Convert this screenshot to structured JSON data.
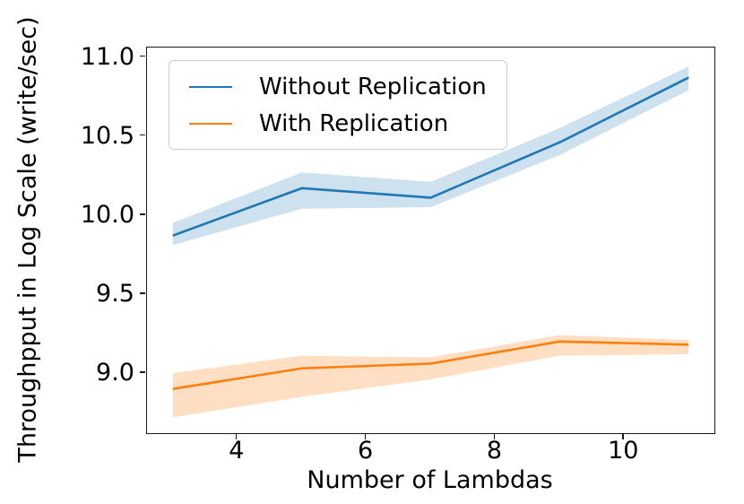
{
  "figure": {
    "background": "#ffffff",
    "spine_color": "#1a1a1a",
    "xlabel": "Number of Lambdas",
    "ylabel": "Throughpput in Log Scale (write/sec)"
  },
  "legend": {
    "position": "upper left",
    "items": [
      {
        "label": "Without Replication",
        "color": "#1f77b4"
      },
      {
        "label": "With Replication",
        "color": "#ff7f0e"
      }
    ]
  },
  "chart_data": {
    "type": "line",
    "title": "",
    "xlabel": "Number of Lambdas",
    "ylabel": "Throughpput in Log Scale (write/sec)",
    "grid": false,
    "legend_position": "upper left",
    "x": [
      3,
      5,
      7,
      9,
      11
    ],
    "xlim": [
      2.6,
      11.4
    ],
    "ylim": [
      8.62,
      11.06
    ],
    "xticks": [
      4,
      6,
      8,
      10
    ],
    "yticks": [
      9.0,
      9.5,
      10.0,
      10.5,
      11.0
    ],
    "series": [
      {
        "name": "Without Replication",
        "color": "#1f77b4",
        "band_color": "rgba(31,119,180,0.22)",
        "values": [
          9.87,
          10.17,
          10.11,
          10.46,
          10.87
        ],
        "band_low": [
          9.81,
          10.04,
          10.05,
          10.38,
          10.79
        ],
        "band_high": [
          9.95,
          10.27,
          10.21,
          10.55,
          10.94
        ]
      },
      {
        "name": "With Replication",
        "color": "#ff7f0e",
        "band_color": "rgba(255,127,14,0.25)",
        "values": [
          8.9,
          9.03,
          9.06,
          9.2,
          9.18
        ],
        "band_low": [
          8.72,
          8.85,
          8.96,
          9.11,
          9.12
        ],
        "band_high": [
          9.0,
          9.11,
          9.1,
          9.24,
          9.21
        ]
      }
    ]
  }
}
